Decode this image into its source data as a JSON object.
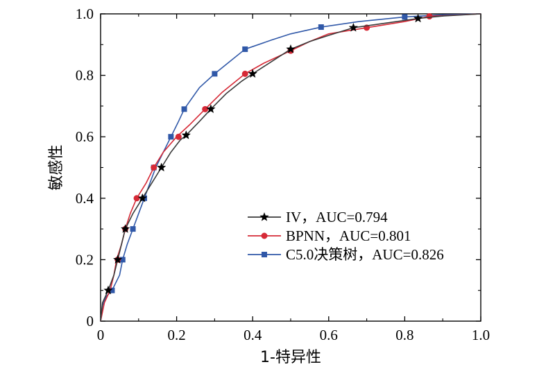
{
  "chart_data": {
    "type": "line",
    "title": "",
    "xlabel": "1-特异性",
    "ylabel": "敏感性",
    "xlim": [
      0,
      1.0
    ],
    "ylim": [
      0,
      1.0
    ],
    "x_ticks": [
      "0",
      "0.2",
      "0.4",
      "0.6",
      "0.8",
      "1.0"
    ],
    "y_ticks": [
      "0",
      "0.2",
      "0.4",
      "0.6",
      "0.8",
      "1.0"
    ],
    "grid": false,
    "legend_position": "lower-right",
    "series": [
      {
        "name": "IV，AUC=0.794",
        "color": "#3a3a3a",
        "marker": "star",
        "points": [
          [
            0,
            0
          ],
          [
            0.005,
            0.06
          ],
          [
            0.02,
            0.1
          ],
          [
            0.035,
            0.15
          ],
          [
            0.045,
            0.2
          ],
          [
            0.055,
            0.25
          ],
          [
            0.065,
            0.3
          ],
          [
            0.085,
            0.35
          ],
          [
            0.11,
            0.4
          ],
          [
            0.14,
            0.46
          ],
          [
            0.16,
            0.5
          ],
          [
            0.185,
            0.55
          ],
          [
            0.21,
            0.59
          ],
          [
            0.225,
            0.605
          ],
          [
            0.26,
            0.65
          ],
          [
            0.29,
            0.69
          ],
          [
            0.33,
            0.74
          ],
          [
            0.37,
            0.78
          ],
          [
            0.4,
            0.805
          ],
          [
            0.45,
            0.845
          ],
          [
            0.5,
            0.885
          ],
          [
            0.55,
            0.91
          ],
          [
            0.6,
            0.93
          ],
          [
            0.665,
            0.955
          ],
          [
            0.75,
            0.97
          ],
          [
            0.835,
            0.985
          ],
          [
            0.9,
            0.993
          ],
          [
            1.0,
            1.0
          ]
        ],
        "marker_points": [
          [
            0.02,
            0.1
          ],
          [
            0.045,
            0.2
          ],
          [
            0.065,
            0.3
          ],
          [
            0.11,
            0.4
          ],
          [
            0.16,
            0.5
          ],
          [
            0.225,
            0.605
          ],
          [
            0.29,
            0.69
          ],
          [
            0.4,
            0.805
          ],
          [
            0.5,
            0.885
          ],
          [
            0.665,
            0.955
          ],
          [
            0.835,
            0.985
          ]
        ]
      },
      {
        "name": "BPNN，AUC=0.801",
        "color": "#d62936",
        "marker": "circle",
        "points": [
          [
            0,
            0
          ],
          [
            0.01,
            0.06
          ],
          [
            0.025,
            0.1
          ],
          [
            0.035,
            0.15
          ],
          [
            0.042,
            0.2
          ],
          [
            0.055,
            0.25
          ],
          [
            0.065,
            0.3
          ],
          [
            0.078,
            0.35
          ],
          [
            0.095,
            0.4
          ],
          [
            0.12,
            0.45
          ],
          [
            0.14,
            0.5
          ],
          [
            0.165,
            0.55
          ],
          [
            0.2,
            0.6
          ],
          [
            0.235,
            0.64
          ],
          [
            0.275,
            0.69
          ],
          [
            0.32,
            0.745
          ],
          [
            0.38,
            0.805
          ],
          [
            0.43,
            0.84
          ],
          [
            0.5,
            0.88
          ],
          [
            0.55,
            0.91
          ],
          [
            0.6,
            0.935
          ],
          [
            0.7,
            0.955
          ],
          [
            0.8,
            0.975
          ],
          [
            0.865,
            0.992
          ],
          [
            1.0,
            1.0
          ]
        ],
        "marker_points": [
          [
            0.045,
            0.2
          ],
          [
            0.065,
            0.3
          ],
          [
            0.095,
            0.4
          ],
          [
            0.14,
            0.5
          ],
          [
            0.205,
            0.6
          ],
          [
            0.275,
            0.69
          ],
          [
            0.38,
            0.805
          ],
          [
            0.5,
            0.88
          ],
          [
            0.7,
            0.955
          ],
          [
            0.865,
            0.992
          ]
        ]
      },
      {
        "name": "C5.0决策树，AUC=0.826",
        "color": "#3058a8",
        "marker": "square",
        "points": [
          [
            0,
            0
          ],
          [
            0.005,
            0.05
          ],
          [
            0.015,
            0.08
          ],
          [
            0.03,
            0.1
          ],
          [
            0.05,
            0.15
          ],
          [
            0.058,
            0.2
          ],
          [
            0.07,
            0.25
          ],
          [
            0.085,
            0.3
          ],
          [
            0.1,
            0.35
          ],
          [
            0.115,
            0.4
          ],
          [
            0.13,
            0.45
          ],
          [
            0.145,
            0.5
          ],
          [
            0.165,
            0.55
          ],
          [
            0.185,
            0.6
          ],
          [
            0.205,
            0.65
          ],
          [
            0.22,
            0.69
          ],
          [
            0.26,
            0.76
          ],
          [
            0.3,
            0.805
          ],
          [
            0.34,
            0.845
          ],
          [
            0.38,
            0.885
          ],
          [
            0.45,
            0.915
          ],
          [
            0.5,
            0.935
          ],
          [
            0.58,
            0.957
          ],
          [
            0.68,
            0.975
          ],
          [
            0.8,
            0.99
          ],
          [
            0.9,
            0.997
          ],
          [
            1.0,
            1.0
          ]
        ],
        "marker_points": [
          [
            0.03,
            0.1
          ],
          [
            0.058,
            0.2
          ],
          [
            0.085,
            0.3
          ],
          [
            0.115,
            0.4
          ],
          [
            0.14,
            0.5
          ],
          [
            0.185,
            0.6
          ],
          [
            0.22,
            0.69
          ],
          [
            0.3,
            0.805
          ],
          [
            0.38,
            0.885
          ],
          [
            0.58,
            0.957
          ],
          [
            0.8,
            0.99
          ]
        ]
      }
    ]
  }
}
